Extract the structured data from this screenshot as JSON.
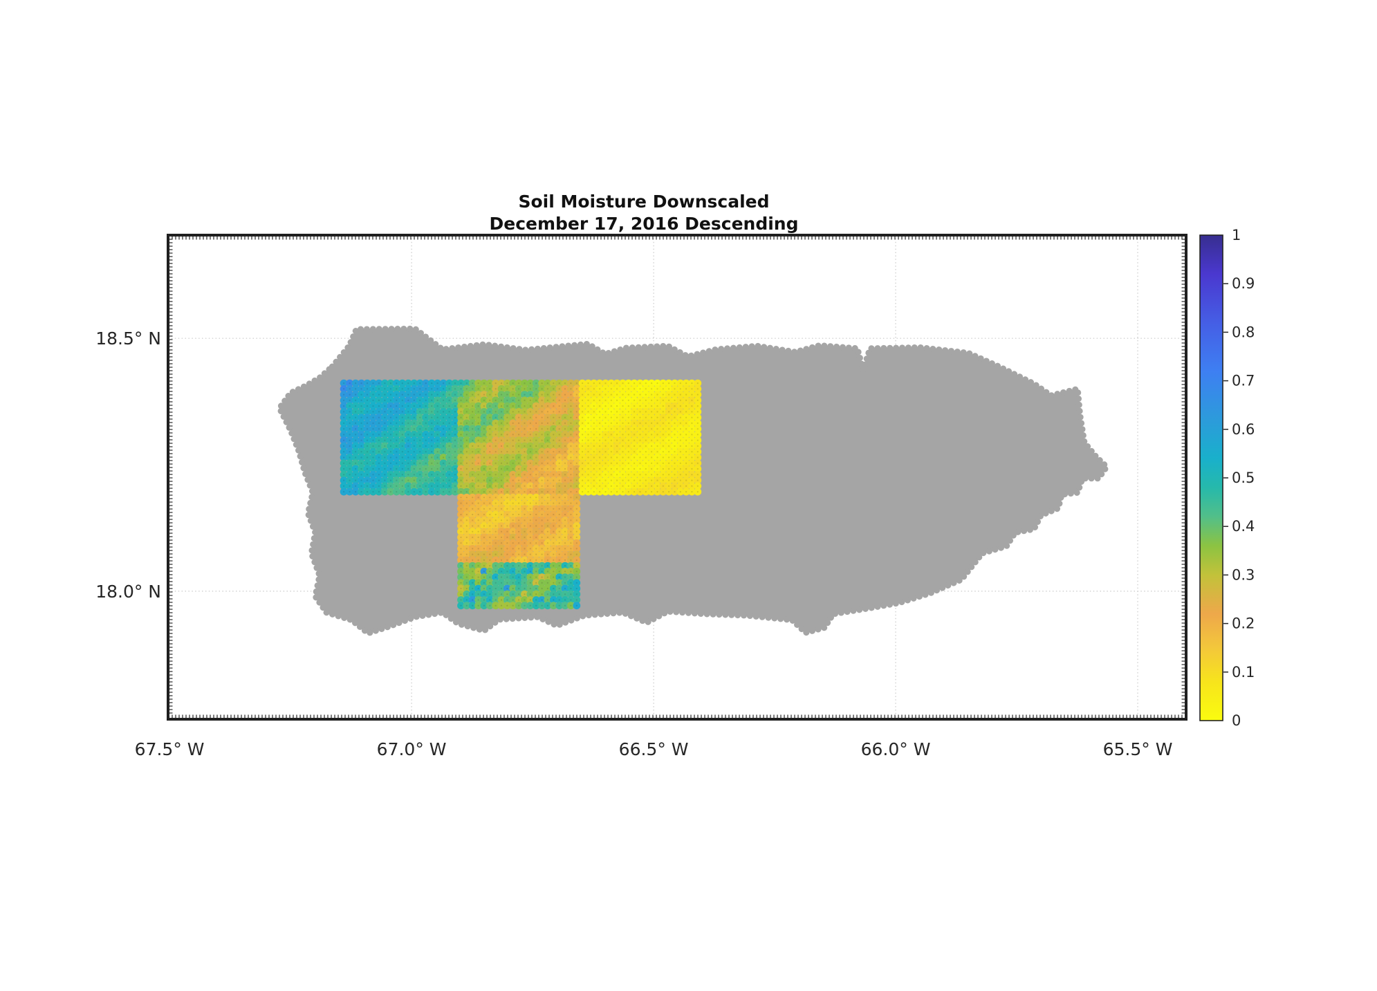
{
  "figure": {
    "title_line1": "Soil Moisture Downscaled",
    "title_line2": "December 17, 2016 Descending"
  },
  "chart_data": {
    "type": "heatmap",
    "title": "Soil Moisture Downscaled\nDecember 17, 2016 Descending",
    "xlabel": "",
    "ylabel": "",
    "xlim": [
      -67.503,
      -65.4
    ],
    "ylim": [
      17.747,
      18.704
    ],
    "grid": true,
    "xticks": [
      {
        "value": -67.5,
        "label": "67.5° W"
      },
      {
        "value": -67.0,
        "label": "67.0° W"
      },
      {
        "value": -66.5,
        "label": "66.5° W"
      },
      {
        "value": -66.0,
        "label": "66.0° W"
      },
      {
        "value": -65.5,
        "label": "65.5° W"
      }
    ],
    "yticks": [
      {
        "value": 18.5,
        "label": "18.5° N"
      },
      {
        "value": 18.0,
        "label": "18.0° N"
      }
    ],
    "colorbar": {
      "min": 0,
      "max": 1,
      "position": "right",
      "tick_values": [
        1,
        0.9,
        0.8,
        0.7,
        0.6,
        0.5,
        0.4,
        0.3,
        0.2,
        0.1,
        0
      ],
      "tick_labels": [
        "1",
        "0.9",
        "0.8",
        "0.7",
        "0.6",
        "0.5",
        "0.4",
        "0.3",
        "0.2",
        "0.1",
        "0"
      ]
    },
    "colormap": [
      [
        0.0,
        "#fafc0f"
      ],
      [
        0.08,
        "#f7e41c"
      ],
      [
        0.15,
        "#f3c73b"
      ],
      [
        0.22,
        "#eea84a"
      ],
      [
        0.3,
        "#c2c23a"
      ],
      [
        0.36,
        "#8cc342"
      ],
      [
        0.42,
        "#52bf89"
      ],
      [
        0.48,
        "#26b9ab"
      ],
      [
        0.54,
        "#19b0cb"
      ],
      [
        0.62,
        "#2c9bdb"
      ],
      [
        0.72,
        "#3e7ff2"
      ],
      [
        0.82,
        "#455ee5"
      ],
      [
        0.92,
        "#4a38cf"
      ],
      [
        1.0,
        "#372e8f"
      ]
    ],
    "land_color": "#a5a5a5",
    "region_outline": [
      [
        -67.164,
        18.444
      ],
      [
        -67.129,
        18.485
      ],
      [
        -67.114,
        18.518
      ],
      [
        -66.993,
        18.519
      ],
      [
        -66.936,
        18.478
      ],
      [
        -66.85,
        18.488
      ],
      [
        -66.764,
        18.477
      ],
      [
        -66.636,
        18.489
      ],
      [
        -66.6,
        18.469
      ],
      [
        -66.557,
        18.481
      ],
      [
        -66.471,
        18.485
      ],
      [
        -66.429,
        18.464
      ],
      [
        -66.371,
        18.478
      ],
      [
        -66.286,
        18.485
      ],
      [
        -66.207,
        18.473
      ],
      [
        -66.157,
        18.486
      ],
      [
        -66.079,
        18.48
      ],
      [
        -66.067,
        18.437
      ],
      [
        -66.053,
        18.48
      ],
      [
        -65.95,
        18.482
      ],
      [
        -65.85,
        18.471
      ],
      [
        -65.786,
        18.444
      ],
      [
        -65.714,
        18.41
      ],
      [
        -65.679,
        18.387
      ],
      [
        -65.624,
        18.4
      ],
      [
        -65.619,
        18.348
      ],
      [
        -65.61,
        18.294
      ],
      [
        -65.586,
        18.266
      ],
      [
        -65.564,
        18.246
      ],
      [
        -65.581,
        18.223
      ],
      [
        -65.614,
        18.223
      ],
      [
        -65.624,
        18.195
      ],
      [
        -65.657,
        18.191
      ],
      [
        -65.664,
        18.164
      ],
      [
        -65.7,
        18.15
      ],
      [
        -65.714,
        18.123
      ],
      [
        -65.753,
        18.116
      ],
      [
        -65.771,
        18.089
      ],
      [
        -65.821,
        18.075
      ],
      [
        -65.864,
        18.023
      ],
      [
        -65.929,
        17.996
      ],
      [
        -65.993,
        17.977
      ],
      [
        -66.057,
        17.966
      ],
      [
        -66.129,
        17.955
      ],
      [
        -66.147,
        17.928
      ],
      [
        -66.186,
        17.918
      ],
      [
        -66.214,
        17.943
      ],
      [
        -66.307,
        17.952
      ],
      [
        -66.393,
        17.955
      ],
      [
        -66.471,
        17.96
      ],
      [
        -66.514,
        17.938
      ],
      [
        -66.564,
        17.958
      ],
      [
        -66.643,
        17.952
      ],
      [
        -66.7,
        17.932
      ],
      [
        -66.739,
        17.949
      ],
      [
        -66.819,
        17.944
      ],
      [
        -66.85,
        17.922
      ],
      [
        -66.904,
        17.936
      ],
      [
        -66.936,
        17.958
      ],
      [
        -66.993,
        17.949
      ],
      [
        -67.047,
        17.93
      ],
      [
        -67.09,
        17.917
      ],
      [
        -67.124,
        17.943
      ],
      [
        -67.176,
        17.958
      ],
      [
        -67.199,
        17.99
      ],
      [
        -67.19,
        18.031
      ],
      [
        -67.207,
        18.075
      ],
      [
        -67.199,
        18.116
      ],
      [
        -67.214,
        18.154
      ],
      [
        -67.204,
        18.195
      ],
      [
        -67.221,
        18.236
      ],
      [
        -67.233,
        18.277
      ],
      [
        -67.25,
        18.318
      ],
      [
        -67.273,
        18.362
      ],
      [
        -67.25,
        18.392
      ],
      [
        -67.219,
        18.406
      ],
      [
        -67.19,
        18.422
      ]
    ],
    "soil_moisture_cells": [
      {
        "name": "northwest-cell",
        "lon": [
          -67.146,
          -66.904
        ],
        "lat": [
          18.191,
          18.417
        ],
        "mean_value": 0.52,
        "field": {
          "zones": [
            {
              "y0": 0,
              "y1": 1,
              "base": 0.6,
              "gx": -0.1,
              "gy": -0.07,
              "noise": 0.05,
              "wave": [
                0.05,
                9,
                13,
                0.5
              ]
            }
          ]
        }
      },
      {
        "name": "north-central-cell",
        "lon": [
          -66.904,
          -66.653
        ],
        "lat": [
          18.191,
          18.417
        ],
        "mean_value": 0.3,
        "field": {
          "zones": [
            {
              "y0": 0,
              "y1": 1,
              "base": 0.4,
              "gx": -0.13,
              "gy": -0.09,
              "noise": 0.06,
              "wave": [
                0.05,
                8,
                11,
                2.2
              ]
            }
          ]
        }
      },
      {
        "name": "northeast-cell",
        "lon": [
          -66.653,
          -66.403
        ],
        "lat": [
          18.191,
          18.417
        ],
        "mean_value": 0.06,
        "field": {
          "zones": [
            {
              "y0": 0,
              "y1": 1,
              "base": 0.045,
              "gx": 0.01,
              "gy": 0.015,
              "noise": 0.02,
              "wave": [
                0.03,
                6,
                9,
                1.0
              ]
            }
          ]
        }
      },
      {
        "name": "south-central-cell",
        "lon": [
          -66.904,
          -66.653
        ],
        "lat": [
          17.966,
          18.191
        ],
        "mean_value": 0.24,
        "field": {
          "zones": [
            {
              "y0": 0,
              "y1": 0.58,
              "base": 0.15,
              "gx": 0.02,
              "gy": 0.08,
              "noise": 0.04,
              "wave": [
                0.04,
                7,
                10,
                0.8
              ]
            },
            {
              "y0": 0.58,
              "y1": 1,
              "base": 0.37,
              "gx": 0.0,
              "gy": 0.05,
              "noise": 0.1,
              "wave": [
                0.06,
                9,
                12,
                1.5
              ],
              "spots": [
                0.05,
                0.55,
                0.15
              ]
            }
          ]
        }
      }
    ]
  }
}
